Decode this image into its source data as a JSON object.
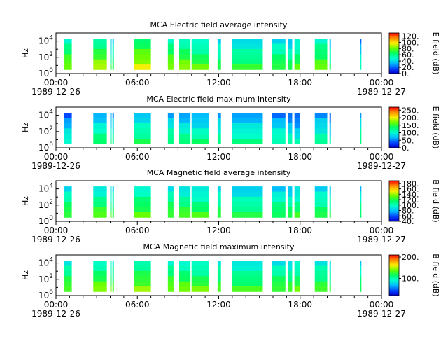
{
  "figure": {
    "time_axis": {
      "ticks": [
        {
          "label": "00:00",
          "date": "1989-12-26"
        },
        {
          "label": "06:00",
          "date": ""
        },
        {
          "label": "12:00",
          "date": ""
        },
        {
          "label": "18:00",
          "date": ""
        },
        {
          "label": "00:00",
          "date": "1989-12-27"
        }
      ]
    },
    "y_axis": {
      "label": "Hz",
      "tick_labels": [
        {
          "base": "10",
          "exp": "0"
        },
        {
          "base": "10",
          "exp": "2"
        },
        {
          "base": "10",
          "exp": "4"
        }
      ]
    }
  },
  "chart_data": [
    {
      "type": "heatmap",
      "title": "MCA  Electric field average intensity",
      "xlabel": "",
      "ylabel": "Hz",
      "x_range": [
        "1989-12-26 00:00",
        "1989-12-27 00:00"
      ],
      "y_scale": "log",
      "ylim": [
        1,
        100000
      ],
      "colorbar": {
        "label": "E field (dB)",
        "ticks": [
          "0.",
          "20.",
          "40.",
          "60.",
          "80.",
          "100.",
          "120."
        ],
        "range": [
          0,
          130
        ]
      },
      "colormap": "rainbow",
      "value_units": "dB",
      "segments": [
        {
          "start": "1989-12-26 00:35",
          "end": "1989-12-26 01:10",
          "level": 68
        },
        {
          "start": "1989-12-26 02:45",
          "end": "1989-12-26 03:45",
          "level": 72
        },
        {
          "start": "1989-12-26 04:00",
          "end": "1989-12-26 04:05",
          "level": 50
        },
        {
          "start": "1989-12-26 04:10",
          "end": "1989-12-26 04:15",
          "level": 55
        },
        {
          "start": "1989-12-26 05:45",
          "end": "1989-12-26 07:00",
          "level": 78
        },
        {
          "start": "1989-12-26 08:15",
          "end": "1989-12-26 08:40",
          "level": 70
        },
        {
          "start": "1989-12-26 09:05",
          "end": "1989-12-26 09:55",
          "level": 68
        },
        {
          "start": "1989-12-26 10:00",
          "end": "1989-12-26 11:15",
          "level": 62
        },
        {
          "start": "1989-12-26 11:55",
          "end": "1989-12-26 12:10",
          "level": 55
        },
        {
          "start": "1989-12-26 13:00",
          "end": "1989-12-26 15:15",
          "level": 55
        },
        {
          "start": "1989-12-26 15:55",
          "end": "1989-12-26 16:55",
          "level": 58
        },
        {
          "start": "1989-12-26 17:05",
          "end": "1989-12-26 17:25",
          "level": 52
        },
        {
          "start": "1989-12-26 17:35",
          "end": "1989-12-26 18:00",
          "level": 60
        },
        {
          "start": "1989-12-26 19:05",
          "end": "1989-12-26 20:00",
          "level": 66
        },
        {
          "start": "1989-12-26 20:10",
          "end": "1989-12-26 20:15",
          "level": 50
        },
        {
          "start": "1989-12-26 22:25",
          "end": "1989-12-26 22:30",
          "level": 40
        }
      ]
    },
    {
      "type": "heatmap",
      "title": "MCA  Electric field maximum intensity",
      "xlabel": "",
      "ylabel": "Hz",
      "x_range": [
        "1989-12-26 00:00",
        "1989-12-27 00:00"
      ],
      "y_scale": "log",
      "ylim": [
        1,
        100000
      ],
      "colorbar": {
        "label": "E field (dB)",
        "ticks": [
          "0.",
          "50.",
          "100.",
          "150.",
          "200.",
          "250."
        ],
        "range": [
          0,
          270
        ]
      },
      "colormap": "rainbow",
      "value_units": "dB",
      "segments": [
        {
          "start": "1989-12-26 00:35",
          "end": "1989-12-26 01:10",
          "level": 75
        },
        {
          "start": "1989-12-26 02:45",
          "end": "1989-12-26 03:45",
          "level": 100
        },
        {
          "start": "1989-12-26 04:00",
          "end": "1989-12-26 04:05",
          "level": 90
        },
        {
          "start": "1989-12-26 04:10",
          "end": "1989-12-26 04:15",
          "level": 90
        },
        {
          "start": "1989-12-26 05:45",
          "end": "1989-12-26 07:00",
          "level": 105
        },
        {
          "start": "1989-12-26 08:15",
          "end": "1989-12-26 08:40",
          "level": 100
        },
        {
          "start": "1989-12-26 09:05",
          "end": "1989-12-26 09:55",
          "level": 95
        },
        {
          "start": "1989-12-26 10:00",
          "end": "1989-12-26 11:15",
          "level": 95
        },
        {
          "start": "1989-12-26 11:55",
          "end": "1989-12-26 12:10",
          "level": 95
        },
        {
          "start": "1989-12-26 13:00",
          "end": "1989-12-26 15:15",
          "level": 90
        },
        {
          "start": "1989-12-26 15:55",
          "end": "1989-12-26 16:55",
          "level": 85
        },
        {
          "start": "1989-12-26 17:05",
          "end": "1989-12-26 17:25",
          "level": 80
        },
        {
          "start": "1989-12-26 17:35",
          "end": "1989-12-26 18:00",
          "level": 70
        },
        {
          "start": "1989-12-26 19:05",
          "end": "1989-12-26 20:00",
          "level": 90
        },
        {
          "start": "1989-12-26 20:10",
          "end": "1989-12-26 20:15",
          "level": 70
        },
        {
          "start": "1989-12-26 22:25",
          "end": "1989-12-26 22:30",
          "level": 100
        }
      ]
    },
    {
      "type": "heatmap",
      "title": "MCA  Magnetic field average intensity",
      "xlabel": "",
      "ylabel": "Hz",
      "x_range": [
        "1989-12-26 00:00",
        "1989-12-27 00:00"
      ],
      "y_scale": "log",
      "ylim": [
        1,
        100000
      ],
      "colorbar": {
        "label": "B field (dB)",
        "ticks": [
          "40.",
          "60.",
          "80.",
          "100.",
          "120.",
          "140.",
          "160.",
          "180."
        ],
        "range": [
          40,
          190
        ]
      },
      "colormap": "rainbow",
      "value_units": "dB",
      "segments": [
        {
          "start": "1989-12-26 00:35",
          "end": "1989-12-26 01:10",
          "level": 108
        },
        {
          "start": "1989-12-26 02:45",
          "end": "1989-12-26 03:45",
          "level": 110
        },
        {
          "start": "1989-12-26 04:00",
          "end": "1989-12-26 04:05",
          "level": 105
        },
        {
          "start": "1989-12-26 04:10",
          "end": "1989-12-26 04:15",
          "level": 105
        },
        {
          "start": "1989-12-26 05:45",
          "end": "1989-12-26 07:00",
          "level": 112
        },
        {
          "start": "1989-12-26 08:15",
          "end": "1989-12-26 08:40",
          "level": 110
        },
        {
          "start": "1989-12-26 09:05",
          "end": "1989-12-26 09:55",
          "level": 108
        },
        {
          "start": "1989-12-26 10:00",
          "end": "1989-12-26 11:15",
          "level": 106
        },
        {
          "start": "1989-12-26 11:55",
          "end": "1989-12-26 12:10",
          "level": 105
        },
        {
          "start": "1989-12-26 13:00",
          "end": "1989-12-26 15:15",
          "level": 100
        },
        {
          "start": "1989-12-26 15:55",
          "end": "1989-12-26 16:55",
          "level": 102
        },
        {
          "start": "1989-12-26 17:05",
          "end": "1989-12-26 17:25",
          "level": 100
        },
        {
          "start": "1989-12-26 17:35",
          "end": "1989-12-26 18:00",
          "level": 104
        },
        {
          "start": "1989-12-26 19:05",
          "end": "1989-12-26 20:00",
          "level": 103
        },
        {
          "start": "1989-12-26 20:10",
          "end": "1989-12-26 20:15",
          "level": 100
        },
        {
          "start": "1989-12-26 22:25",
          "end": "1989-12-26 22:30",
          "level": 100
        }
      ]
    },
    {
      "type": "heatmap",
      "title": "MCA  Magnetic field maximum intensity",
      "xlabel": "",
      "ylabel": "Hz",
      "x_range": [
        "1989-12-26 00:00",
        "1989-12-27 00:00"
      ],
      "y_scale": "log",
      "ylim": [
        1,
        100000
      ],
      "colorbar": {
        "label": "B field (dB)",
        "ticks": [
          "100.",
          "200."
        ],
        "range": [
          20,
          210
        ]
      },
      "colormap": "rainbow",
      "value_units": "dB",
      "segments": [
        {
          "start": "1989-12-26 00:35",
          "end": "1989-12-26 01:10",
          "level": 112
        },
        {
          "start": "1989-12-26 02:45",
          "end": "1989-12-26 03:45",
          "level": 118
        },
        {
          "start": "1989-12-26 04:00",
          "end": "1989-12-26 04:05",
          "level": 110
        },
        {
          "start": "1989-12-26 04:10",
          "end": "1989-12-26 04:15",
          "level": 110
        },
        {
          "start": "1989-12-26 05:45",
          "end": "1989-12-26 07:00",
          "level": 120
        },
        {
          "start": "1989-12-26 08:15",
          "end": "1989-12-26 08:40",
          "level": 118
        },
        {
          "start": "1989-12-26 09:05",
          "end": "1989-12-26 09:55",
          "level": 115
        },
        {
          "start": "1989-12-26 10:00",
          "end": "1989-12-26 11:15",
          "level": 112
        },
        {
          "start": "1989-12-26 11:55",
          "end": "1989-12-26 12:10",
          "level": 110
        },
        {
          "start": "1989-12-26 13:00",
          "end": "1989-12-26 15:15",
          "level": 105
        },
        {
          "start": "1989-12-26 15:55",
          "end": "1989-12-26 16:55",
          "level": 108
        },
        {
          "start": "1989-12-26 17:05",
          "end": "1989-12-26 17:25",
          "level": 105
        },
        {
          "start": "1989-12-26 17:35",
          "end": "1989-12-26 18:00",
          "level": 110
        },
        {
          "start": "1989-12-26 19:05",
          "end": "1989-12-26 20:00",
          "level": 108
        },
        {
          "start": "1989-12-26 20:10",
          "end": "1989-12-26 20:15",
          "level": 100
        },
        {
          "start": "1989-12-26 22:25",
          "end": "1989-12-26 22:30",
          "level": 100
        }
      ]
    }
  ]
}
